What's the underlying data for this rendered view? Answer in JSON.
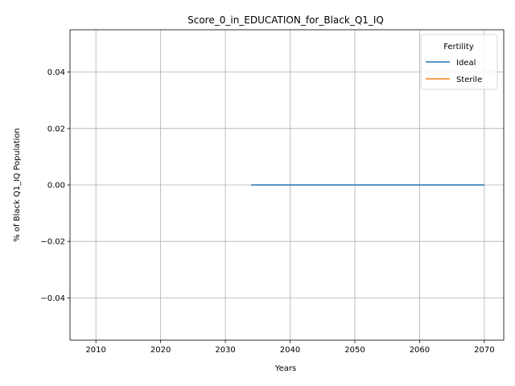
{
  "chart_data": {
    "type": "line",
    "title": "Score_0_in_EDUCATION_for_Black_Q1_IQ",
    "xlabel": "Years",
    "ylabel": "% of Black Q1_IQ Population",
    "xlim": [
      2006,
      2073
    ],
    "ylim": [
      -0.055,
      0.055
    ],
    "xticks": [
      2010,
      2020,
      2030,
      2040,
      2050,
      2060,
      2070
    ],
    "yticks": [
      -0.04,
      -0.02,
      0.0,
      0.02,
      0.04
    ],
    "ytick_labels": [
      "−0.04",
      "−0.02",
      "0.00",
      "0.02",
      "0.04"
    ],
    "grid": true,
    "legend": {
      "title": "Fertility",
      "placement": "top-right"
    },
    "series": [
      {
        "name": "Ideal",
        "color": "#1f77b4",
        "x": [
          2034,
          2070
        ],
        "y": [
          0.0,
          0.0
        ]
      },
      {
        "name": "Sterile",
        "color": "#ff7f0e",
        "x": [],
        "y": []
      }
    ]
  }
}
